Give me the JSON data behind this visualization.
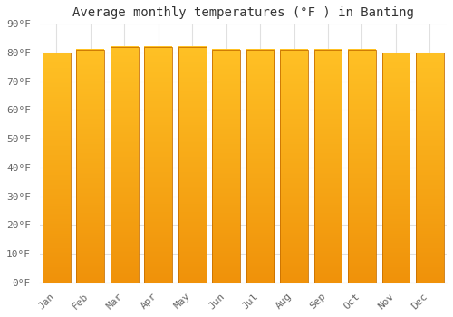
{
  "title": "Average monthly temperatures (°F ) in Banting",
  "months": [
    "Jan",
    "Feb",
    "Mar",
    "Apr",
    "May",
    "Jun",
    "Jul",
    "Aug",
    "Sep",
    "Oct",
    "Nov",
    "Dec"
  ],
  "values": [
    80,
    81,
    82,
    82,
    82,
    81,
    81,
    81,
    81,
    81,
    80,
    80
  ],
  "bar_color_top": "#FFC125",
  "bar_color_bottom": "#F0920A",
  "bar_edge_color": "#C87000",
  "ylim": [
    0,
    90
  ],
  "yticks": [
    0,
    10,
    20,
    30,
    40,
    50,
    60,
    70,
    80,
    90
  ],
  "ytick_labels": [
    "0°F",
    "10°F",
    "20°F",
    "30°F",
    "40°F",
    "50°F",
    "60°F",
    "70°F",
    "80°F",
    "90°F"
  ],
  "bg_color": "#FFFFFF",
  "grid_color": "#E0E0E0",
  "title_fontsize": 10,
  "tick_fontsize": 8,
  "bar_width": 0.82,
  "font_family": "monospace"
}
